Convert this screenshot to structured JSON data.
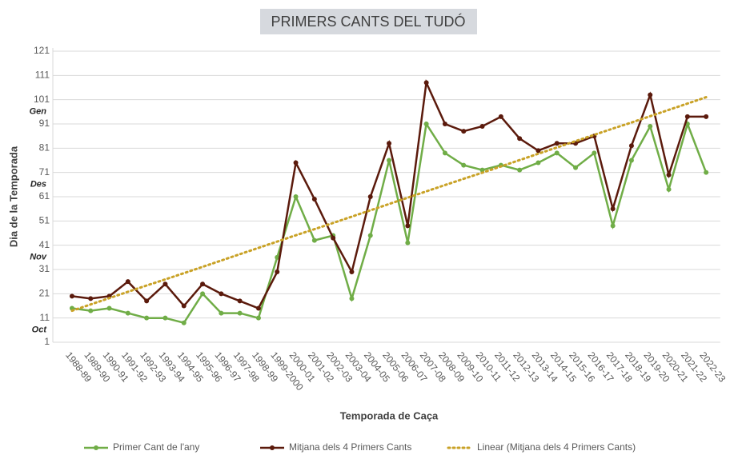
{
  "chart_data": {
    "type": "line",
    "title": "PRIMERS CANTS DEL TUDÓ",
    "x_label": "Temporada de Caça",
    "y_label": "Dia de la Temporada",
    "categories": [
      "1988-89",
      "1989-90",
      "1990-91",
      "1991-92",
      "1992-93",
      "1993-94",
      "1994-95",
      "1995-96",
      "1996-97",
      "1997-98",
      "1998-99",
      "1999-2000",
      "2000-01",
      "2001-02",
      "2002-03",
      "2003-04",
      "2004-05",
      "2005-06",
      "2006-07",
      "2007-08",
      "2008-09",
      "2009-10",
      "2010-11",
      "2011-12",
      "2012-13",
      "2013-14",
      "2014-15",
      "2015-16",
      "2016-17",
      "2017-18",
      "2018-19",
      "2019-20",
      "2020-21",
      "2021-22",
      "2022-23"
    ],
    "series": [
      {
        "name": "Primer Cant de l'any",
        "color": "#70ad47",
        "style": "solid",
        "markers": true,
        "values": [
          15,
          14,
          15,
          13,
          11,
          11,
          9,
          21,
          13,
          13,
          11,
          36,
          61,
          43,
          45,
          19,
          45,
          76,
          42,
          91,
          79,
          74,
          72,
          74,
          72,
          75,
          79,
          73,
          79,
          49,
          76,
          90,
          64,
          91,
          71
        ]
      },
      {
        "name": "Mitjana dels 4 Primers Cants",
        "color": "#5b1a0c",
        "style": "solid",
        "markers": true,
        "values": [
          20,
          19,
          20,
          26,
          18,
          25,
          16,
          25,
          21,
          18,
          15,
          30,
          75,
          60,
          44,
          30,
          61,
          83,
          49,
          108,
          91,
          88,
          90,
          94,
          85,
          80,
          83,
          83,
          86,
          56,
          82,
          103,
          70,
          94,
          94
        ]
      },
      {
        "name": "Linear (Mitjana dels 4 Primers Cants)",
        "color": "#c9a227",
        "style": "dotted",
        "markers": false,
        "values": [
          14.0,
          16.6,
          19.2,
          21.8,
          24.4,
          26.9,
          29.5,
          32.1,
          34.7,
          37.3,
          39.9,
          42.5,
          45.1,
          47.6,
          50.2,
          52.8,
          55.4,
          58.0,
          60.6,
          63.2,
          65.8,
          68.4,
          70.9,
          73.5,
          76.1,
          78.7,
          81.3,
          83.9,
          86.5,
          89.1,
          91.6,
          94.2,
          96.8,
          99.4,
          102.0
        ]
      }
    ],
    "ylim": [
      1,
      121
    ],
    "yticks": [
      1,
      11,
      21,
      31,
      41,
      51,
      61,
      71,
      81,
      91,
      101,
      111,
      121
    ],
    "month_labels": [
      {
        "value": 6,
        "label": "Oct"
      },
      {
        "value": 36,
        "label": "Nov"
      },
      {
        "value": 66,
        "label": "Des"
      },
      {
        "value": 96,
        "label": "Gen"
      }
    ],
    "grid": true,
    "legend": "bottom"
  }
}
